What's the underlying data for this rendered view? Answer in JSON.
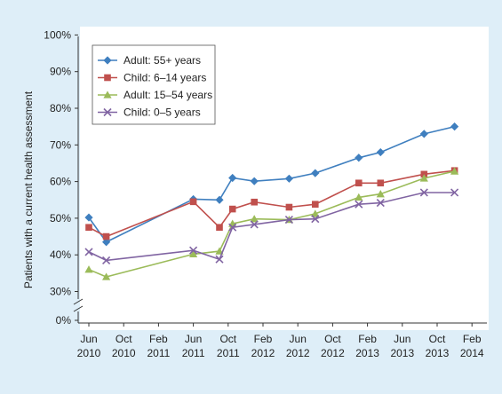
{
  "colors": {
    "panel_bg": "#deeef8",
    "plot_bg": "#ffffff",
    "axis": "#333333"
  },
  "chart_data": {
    "type": "line",
    "title": "",
    "xlabel": "",
    "ylabel": "Patients with a current health assessment",
    "ylim": [
      30,
      100
    ],
    "axis_break": true,
    "grid": false,
    "legend_position": "top-left",
    "y_ticks": [
      {
        "value": 0,
        "label": "0%"
      },
      {
        "value": 30,
        "label": "30%"
      },
      {
        "value": 40,
        "label": "40%"
      },
      {
        "value": 50,
        "label": "50%"
      },
      {
        "value": 60,
        "label": "60%"
      },
      {
        "value": 70,
        "label": "70%"
      },
      {
        "value": 80,
        "label": "80%"
      },
      {
        "value": 90,
        "label": "90%"
      },
      {
        "value": 100,
        "label": "100%"
      }
    ],
    "x_ticks": [
      {
        "m": 0,
        "line1": "Jun",
        "line2": "2010"
      },
      {
        "m": 4,
        "line1": "Oct",
        "line2": "2010"
      },
      {
        "m": 8,
        "line1": "Feb",
        "line2": "2011"
      },
      {
        "m": 12,
        "line1": "Jun",
        "line2": "2011"
      },
      {
        "m": 16,
        "line1": "Oct",
        "line2": "2011"
      },
      {
        "m": 20,
        "line1": "Feb",
        "line2": "2012"
      },
      {
        "m": 24,
        "line1": "Jun",
        "line2": "2012"
      },
      {
        "m": 28,
        "line1": "Oct",
        "line2": "2012"
      },
      {
        "m": 32,
        "line1": "Feb",
        "line2": "2013"
      },
      {
        "m": 36,
        "line1": "Jun",
        "line2": "2013"
      },
      {
        "m": 40,
        "line1": "Oct",
        "line2": "2013"
      },
      {
        "m": 44,
        "line1": "Feb",
        "line2": "2014"
      }
    ],
    "series": [
      {
        "name": "Adult: 55+ years",
        "color": "#3f7fbf",
        "marker": "diamond",
        "points": [
          [
            0,
            50.2
          ],
          [
            2,
            43.5
          ],
          [
            12,
            55.2
          ],
          [
            15,
            55.0
          ],
          [
            16.5,
            61.0
          ],
          [
            19,
            60.1
          ],
          [
            23,
            60.8
          ],
          [
            26,
            62.3
          ],
          [
            31,
            66.5
          ],
          [
            33.5,
            68.0
          ],
          [
            38.5,
            73.0
          ],
          [
            42,
            75.0
          ]
        ]
      },
      {
        "name": "Child: 6–14 years",
        "color": "#c0504d",
        "marker": "square",
        "points": [
          [
            0,
            47.5
          ],
          [
            2,
            45.0
          ],
          [
            12,
            54.5
          ],
          [
            15,
            47.5
          ],
          [
            16.5,
            52.5
          ],
          [
            19,
            54.4
          ],
          [
            23,
            53.0
          ],
          [
            26,
            53.8
          ],
          [
            31,
            59.6
          ],
          [
            33.5,
            59.6
          ],
          [
            38.5,
            62.0
          ],
          [
            42,
            63.0
          ]
        ]
      },
      {
        "name": "Adult: 15–54 years",
        "color": "#9bbb59",
        "marker": "triangle",
        "points": [
          [
            0,
            36.0
          ],
          [
            2,
            34.0
          ],
          [
            12,
            40.2
          ],
          [
            15,
            41.0
          ],
          [
            16.5,
            48.5
          ],
          [
            19,
            49.8
          ],
          [
            23,
            49.6
          ],
          [
            26,
            51.2
          ],
          [
            31,
            55.7
          ],
          [
            33.5,
            56.6
          ],
          [
            38.5,
            60.9
          ],
          [
            42,
            62.8
          ]
        ]
      },
      {
        "name": "Child: 0–5 years",
        "color": "#8064a2",
        "marker": "x",
        "points": [
          [
            0,
            40.8
          ],
          [
            2,
            38.5
          ],
          [
            12,
            41.2
          ],
          [
            15,
            38.8
          ],
          [
            16.5,
            47.5
          ],
          [
            19,
            48.3
          ],
          [
            23,
            49.6
          ],
          [
            26,
            49.8
          ],
          [
            31,
            53.8
          ],
          [
            33.5,
            54.2
          ],
          [
            38.5,
            57.0
          ],
          [
            42,
            57.0
          ]
        ]
      }
    ]
  }
}
